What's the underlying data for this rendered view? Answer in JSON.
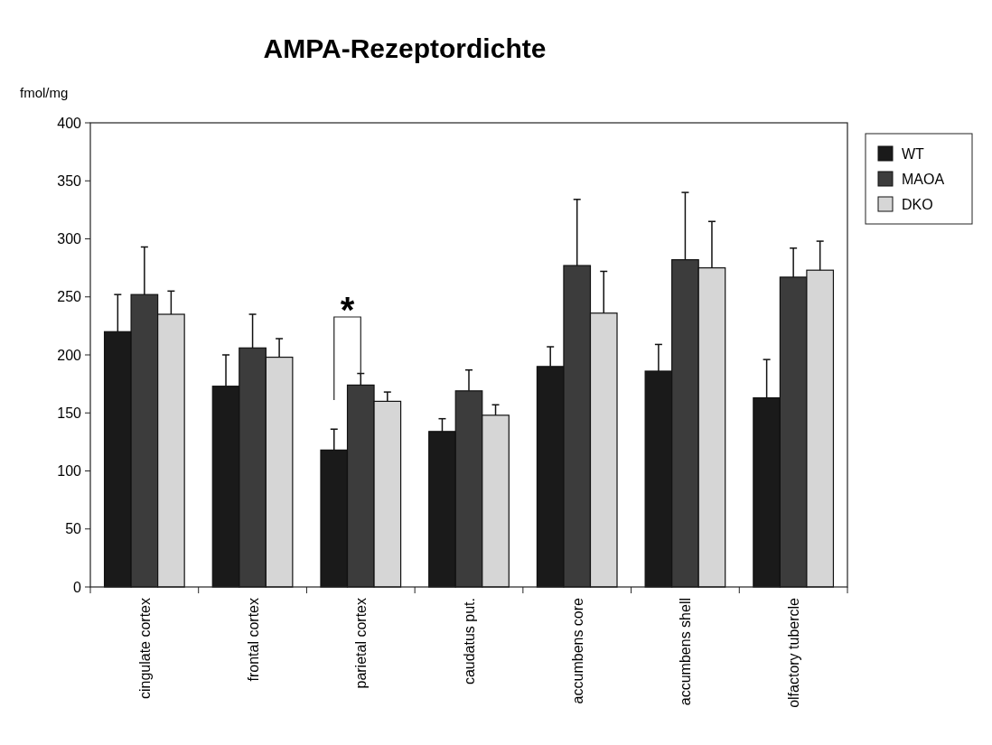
{
  "chart_data": {
    "type": "bar",
    "title": "AMPA-Rezeptordichte",
    "ylabel": "fmol/mg",
    "categories": [
      "cingulate cortex",
      "frontal cortex",
      "parietal cortex",
      "caudatus put.",
      "accumbens core",
      "accumbens shell",
      "olfactory tubercle"
    ],
    "series": [
      {
        "name": "WT",
        "color": "#1a1a1a",
        "values": [
          220,
          173,
          118,
          134,
          190,
          186,
          163
        ],
        "errors": [
          [
            220,
            252
          ],
          [
            173,
            200
          ],
          [
            118,
            136
          ],
          [
            134,
            145
          ],
          [
            190,
            207
          ],
          [
            186,
            209
          ],
          [
            163,
            196
          ]
        ]
      },
      {
        "name": "MAOA",
        "color": "#3c3c3c",
        "values": [
          252,
          206,
          174,
          169,
          277,
          282,
          267
        ],
        "errors": [
          [
            252,
            293
          ],
          [
            206,
            235
          ],
          [
            174,
            184
          ],
          [
            169,
            187
          ],
          [
            277,
            334
          ],
          [
            282,
            340
          ],
          [
            267,
            292
          ]
        ]
      },
      {
        "name": "DKO",
        "color": "#d6d6d6",
        "values": [
          235,
          198,
          160,
          148,
          236,
          275,
          273
        ],
        "errors": [
          [
            235,
            255
          ],
          [
            198,
            214
          ],
          [
            160,
            168
          ],
          [
            148,
            157
          ],
          [
            236,
            272
          ],
          [
            275,
            315
          ],
          [
            273,
            298
          ]
        ]
      }
    ],
    "ylim": [
      0,
      400
    ],
    "yticks": [
      0,
      50,
      100,
      150,
      200,
      250,
      300,
      350,
      400
    ],
    "grid": false,
    "legend": "top right",
    "annotations": [
      "*"
    ]
  }
}
